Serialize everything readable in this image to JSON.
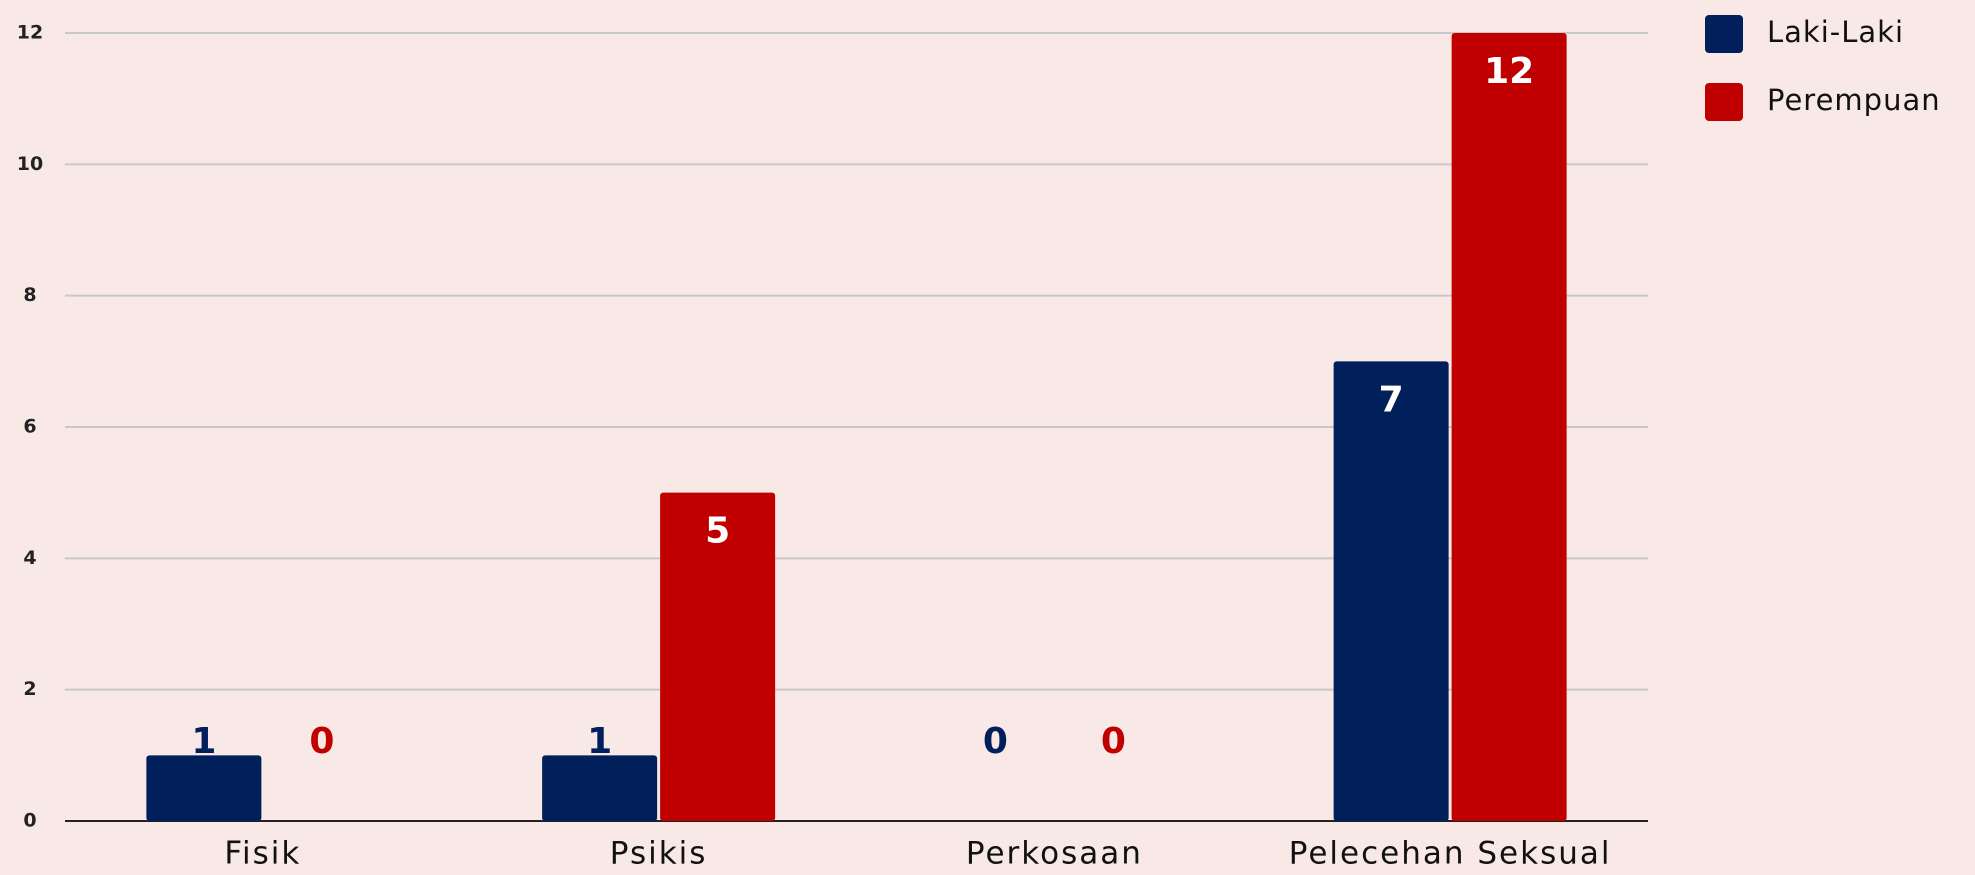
{
  "chart_data": {
    "type": "bar",
    "categories": [
      "Fisik",
      "Psikis",
      "Perkosaan",
      "Pelecehan Seksual"
    ],
    "series": [
      {
        "name": "Laki-Laki",
        "color": "#001f5b",
        "values": [
          1,
          1,
          0,
          7
        ]
      },
      {
        "name": "Perempuan",
        "color": "#c00000",
        "values": [
          0,
          5,
          0,
          12
        ]
      }
    ],
    "ylim": [
      0,
      12
    ],
    "yticks": [
      0,
      2,
      4,
      6,
      8,
      10,
      12
    ],
    "grid": true,
    "legend": "right"
  }
}
